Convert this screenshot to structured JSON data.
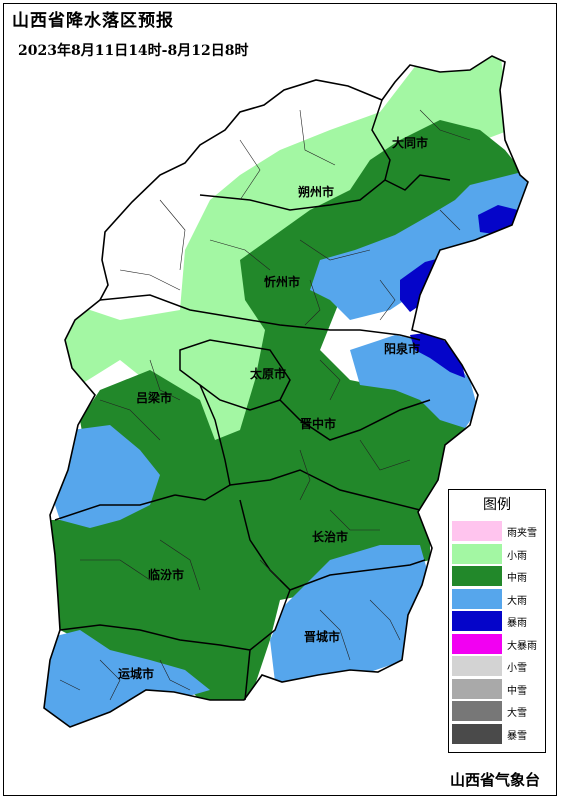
{
  "title": "山西省降水落区预报",
  "subtitle": "2023年8月11日14时-8月12日8时",
  "issuer": "山西省气象台",
  "colors": {
    "none": "#ffffff",
    "light_rain": "#a3f7a3",
    "moderate_rain": "#22882a",
    "heavy_rain": "#56a6ec",
    "rainstorm": "#0505c9",
    "heavy_rainstorm": "#f200f2"
  },
  "cities": [
    {
      "name": "大同市"
    },
    {
      "name": "朔州市"
    },
    {
      "name": "忻州市"
    },
    {
      "name": "阳泉市"
    },
    {
      "name": "太原市"
    },
    {
      "name": "吕梁市"
    },
    {
      "name": "晋中市"
    },
    {
      "name": "长治市"
    },
    {
      "name": "临汾市"
    },
    {
      "name": "晋城市"
    },
    {
      "name": "运城市"
    }
  ],
  "legend": {
    "title": "图例",
    "items": [
      {
        "label": "雨夹雪",
        "color": "#ffc4ee"
      },
      {
        "label": "小雨",
        "color": "#a3f7a3"
      },
      {
        "label": "中雨",
        "color": "#22882a"
      },
      {
        "label": "大雨",
        "color": "#56a6ec"
      },
      {
        "label": "暴雨",
        "color": "#0505c9"
      },
      {
        "label": "大暴雨",
        "color": "#f200f2"
      },
      {
        "label": "小雪",
        "color": "#d3d3d3"
      },
      {
        "label": "中雪",
        "color": "#a9a9a9"
      },
      {
        "label": "大雪",
        "color": "#777777"
      },
      {
        "label": "暴雪",
        "color": "#4a4a4a"
      }
    ]
  }
}
